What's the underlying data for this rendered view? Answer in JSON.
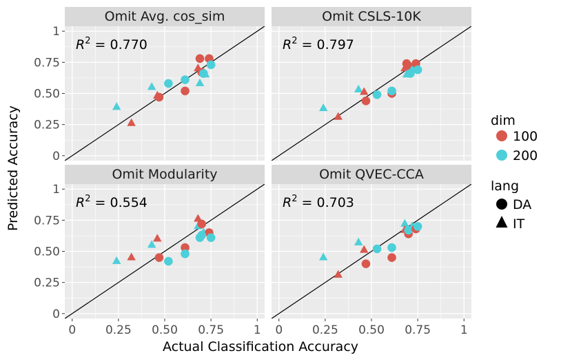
{
  "chart_data": {
    "type": "scatter",
    "xlabel": "Actual Classification Accuracy",
    "ylabel": "Predicted Accuracy",
    "xlim": [
      -0.04,
      1.04
    ],
    "ylim": [
      -0.04,
      1.04
    ],
    "x_ticks": [
      0,
      0.25,
      0.5,
      0.75,
      1
    ],
    "x_tick_labels": [
      "0",
      "0.25",
      "0.50",
      "0.75",
      "1"
    ],
    "y_ticks": [
      0,
      0.25,
      0.5,
      0.75,
      1
    ],
    "y_tick_labels": [
      "0",
      "0.25",
      "0.50",
      "0.75",
      "1"
    ],
    "reference_line": "y = x",
    "colors": {
      "panel_bg": "#EBEBEB",
      "strip_bg": "#D9D9D9",
      "grid": "#FFFFFF",
      "dim_100": "#D9584E",
      "dim_200": "#4DCFD9",
      "line": "#000000"
    },
    "legend": {
      "dim": {
        "title": "dim",
        "entries": [
          {
            "label": "100",
            "color": "#D9584E"
          },
          {
            "label": "200",
            "color": "#4DCFD9"
          }
        ]
      },
      "lang": {
        "title": "lang",
        "entries": [
          {
            "label": "DA",
            "shape": "circle"
          },
          {
            "label": "IT",
            "shape": "triangle"
          }
        ]
      }
    },
    "panels": [
      {
        "title": "Omit Avg. cos_sim",
        "r2_label": "R",
        "r2_sup": "2",
        "r2_value": " = 0.770",
        "points": [
          {
            "x": 0.24,
            "y": 0.39,
            "dim": "200",
            "lang": "IT"
          },
          {
            "x": 0.32,
            "y": 0.26,
            "dim": "100",
            "lang": "IT"
          },
          {
            "x": 0.43,
            "y": 0.55,
            "dim": "200",
            "lang": "IT"
          },
          {
            "x": 0.46,
            "y": 0.48,
            "dim": "100",
            "lang": "IT"
          },
          {
            "x": 0.47,
            "y": 0.47,
            "dim": "100",
            "lang": "DA"
          },
          {
            "x": 0.52,
            "y": 0.58,
            "dim": "200",
            "lang": "DA"
          },
          {
            "x": 0.61,
            "y": 0.52,
            "dim": "100",
            "lang": "DA"
          },
          {
            "x": 0.61,
            "y": 0.61,
            "dim": "200",
            "lang": "DA"
          },
          {
            "x": 0.68,
            "y": 0.7,
            "dim": "100",
            "lang": "IT"
          },
          {
            "x": 0.69,
            "y": 0.78,
            "dim": "100",
            "lang": "DA"
          },
          {
            "x": 0.7,
            "y": 0.67,
            "dim": "100",
            "lang": "DA"
          },
          {
            "x": 0.71,
            "y": 0.66,
            "dim": "200",
            "lang": "DA"
          },
          {
            "x": 0.69,
            "y": 0.58,
            "dim": "200",
            "lang": "IT"
          },
          {
            "x": 0.72,
            "y": 0.65,
            "dim": "200",
            "lang": "IT"
          },
          {
            "x": 0.74,
            "y": 0.78,
            "dim": "100",
            "lang": "DA"
          },
          {
            "x": 0.75,
            "y": 0.73,
            "dim": "200",
            "lang": "DA"
          }
        ]
      },
      {
        "title": "Omit CSLS-10K",
        "r2_label": "R",
        "r2_sup": "2",
        "r2_value": " = 0.797",
        "points": [
          {
            "x": 0.24,
            "y": 0.38,
            "dim": "200",
            "lang": "IT"
          },
          {
            "x": 0.32,
            "y": 0.31,
            "dim": "100",
            "lang": "IT"
          },
          {
            "x": 0.43,
            "y": 0.53,
            "dim": "200",
            "lang": "IT"
          },
          {
            "x": 0.46,
            "y": 0.51,
            "dim": "100",
            "lang": "IT"
          },
          {
            "x": 0.47,
            "y": 0.44,
            "dim": "100",
            "lang": "DA"
          },
          {
            "x": 0.53,
            "y": 0.49,
            "dim": "200",
            "lang": "DA"
          },
          {
            "x": 0.61,
            "y": 0.5,
            "dim": "100",
            "lang": "DA"
          },
          {
            "x": 0.61,
            "y": 0.52,
            "dim": "200",
            "lang": "DA"
          },
          {
            "x": 0.68,
            "y": 0.7,
            "dim": "100",
            "lang": "IT"
          },
          {
            "x": 0.69,
            "y": 0.74,
            "dim": "100",
            "lang": "DA"
          },
          {
            "x": 0.7,
            "y": 0.72,
            "dim": "100",
            "lang": "DA"
          },
          {
            "x": 0.69,
            "y": 0.65,
            "dim": "200",
            "lang": "IT"
          },
          {
            "x": 0.71,
            "y": 0.66,
            "dim": "200",
            "lang": "DA"
          },
          {
            "x": 0.72,
            "y": 0.69,
            "dim": "200",
            "lang": "IT"
          },
          {
            "x": 0.74,
            "y": 0.74,
            "dim": "100",
            "lang": "DA"
          },
          {
            "x": 0.75,
            "y": 0.69,
            "dim": "200",
            "lang": "DA"
          }
        ]
      },
      {
        "title": "Omit Modularity",
        "r2_label": "R",
        "r2_sup": "2",
        "r2_value": " = 0.554",
        "points": [
          {
            "x": 0.24,
            "y": 0.42,
            "dim": "200",
            "lang": "IT"
          },
          {
            "x": 0.32,
            "y": 0.45,
            "dim": "100",
            "lang": "IT"
          },
          {
            "x": 0.43,
            "y": 0.55,
            "dim": "200",
            "lang": "IT"
          },
          {
            "x": 0.46,
            "y": 0.6,
            "dim": "100",
            "lang": "IT"
          },
          {
            "x": 0.47,
            "y": 0.45,
            "dim": "100",
            "lang": "DA"
          },
          {
            "x": 0.52,
            "y": 0.42,
            "dim": "200",
            "lang": "DA"
          },
          {
            "x": 0.61,
            "y": 0.53,
            "dim": "100",
            "lang": "DA"
          },
          {
            "x": 0.61,
            "y": 0.48,
            "dim": "200",
            "lang": "DA"
          },
          {
            "x": 0.68,
            "y": 0.76,
            "dim": "100",
            "lang": "IT"
          },
          {
            "x": 0.68,
            "y": 0.7,
            "dim": "200",
            "lang": "IT"
          },
          {
            "x": 0.7,
            "y": 0.72,
            "dim": "100",
            "lang": "DA"
          },
          {
            "x": 0.69,
            "y": 0.61,
            "dim": "200",
            "lang": "DA"
          },
          {
            "x": 0.71,
            "y": 0.65,
            "dim": "200",
            "lang": "IT"
          },
          {
            "x": 0.74,
            "y": 0.65,
            "dim": "100",
            "lang": "DA"
          },
          {
            "x": 0.75,
            "y": 0.61,
            "dim": "200",
            "lang": "DA"
          },
          {
            "x": 0.7,
            "y": 0.63,
            "dim": "200",
            "lang": "DA"
          }
        ]
      },
      {
        "title": "Omit QVEC-CCA",
        "r2_label": "R",
        "r2_sup": "2",
        "r2_value": " = 0.703",
        "points": [
          {
            "x": 0.24,
            "y": 0.45,
            "dim": "200",
            "lang": "IT"
          },
          {
            "x": 0.32,
            "y": 0.31,
            "dim": "100",
            "lang": "IT"
          },
          {
            "x": 0.43,
            "y": 0.57,
            "dim": "200",
            "lang": "IT"
          },
          {
            "x": 0.46,
            "y": 0.51,
            "dim": "100",
            "lang": "IT"
          },
          {
            "x": 0.47,
            "y": 0.4,
            "dim": "100",
            "lang": "DA"
          },
          {
            "x": 0.53,
            "y": 0.52,
            "dim": "200",
            "lang": "DA"
          },
          {
            "x": 0.61,
            "y": 0.45,
            "dim": "100",
            "lang": "DA"
          },
          {
            "x": 0.61,
            "y": 0.53,
            "dim": "200",
            "lang": "DA"
          },
          {
            "x": 0.68,
            "y": 0.72,
            "dim": "200",
            "lang": "IT"
          },
          {
            "x": 0.68,
            "y": 0.67,
            "dim": "100",
            "lang": "IT"
          },
          {
            "x": 0.7,
            "y": 0.64,
            "dim": "100",
            "lang": "DA"
          },
          {
            "x": 0.7,
            "y": 0.67,
            "dim": "200",
            "lang": "DA"
          },
          {
            "x": 0.72,
            "y": 0.7,
            "dim": "200",
            "lang": "IT"
          },
          {
            "x": 0.74,
            "y": 0.68,
            "dim": "100",
            "lang": "DA"
          },
          {
            "x": 0.75,
            "y": 0.7,
            "dim": "200",
            "lang": "DA"
          }
        ]
      }
    ]
  }
}
